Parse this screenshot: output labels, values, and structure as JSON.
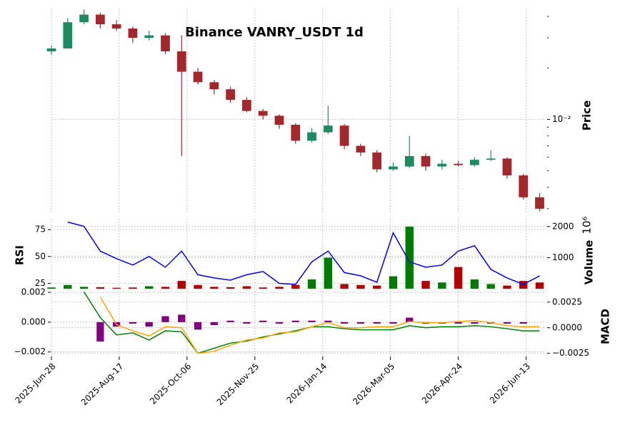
{
  "chart_data": {
    "type": "candlestick",
    "title": "Binance VANRY_USDT 1d",
    "x": [
      0,
      12,
      24,
      36,
      48,
      60,
      72,
      84,
      96,
      108,
      120,
      132,
      144,
      156,
      168,
      180,
      192,
      204,
      216,
      228,
      240,
      252,
      264,
      276,
      288,
      300,
      312,
      324,
      336,
      348,
      360
    ],
    "xlim": [
      0,
      365
    ],
    "xticks": [
      {
        "value": 0,
        "label": "2025-Jun-28"
      },
      {
        "value": 50,
        "label": "2025-Aug-17"
      },
      {
        "value": 100,
        "label": "2025-Oct-06"
      },
      {
        "value": 150,
        "label": "2025-Nov-25"
      },
      {
        "value": 200,
        "label": "2026-Jan-14"
      },
      {
        "value": 250,
        "label": "2026-Mar-05"
      },
      {
        "value": 300,
        "label": "2026-Apr-24"
      },
      {
        "value": 350,
        "label": "2026-Jun-13"
      }
    ],
    "grid": true,
    "price": {
      "ylabel": "Price",
      "log_scale": true,
      "ylim": [
        0.0028,
        0.0445
      ],
      "yticks": [
        {
          "value": 0.01,
          "label": "10⁻²"
        }
      ],
      "yminor_ticks": [
        0.003,
        0.004,
        0.005,
        0.006,
        0.007,
        0.008,
        0.009,
        0.02,
        0.03,
        0.04
      ],
      "up_color": "#1f8a5f",
      "down_color": "#a3282e",
      "open": [
        0.025,
        0.026,
        0.037,
        0.041,
        0.036,
        0.034,
        0.03,
        0.031,
        0.025,
        0.019,
        0.0165,
        0.015,
        0.013,
        0.0112,
        0.0105,
        0.0093,
        0.0075,
        0.0084,
        0.0092,
        0.007,
        0.0064,
        0.0051,
        0.0053,
        0.0061,
        0.0053,
        0.0055,
        0.0054,
        0.0058,
        0.0059,
        0.0047,
        0.0035
      ],
      "high": [
        0.027,
        0.039,
        0.044,
        0.042,
        0.038,
        0.035,
        0.033,
        0.032,
        0.031,
        0.02,
        0.017,
        0.0155,
        0.0135,
        0.0115,
        0.0107,
        0.0095,
        0.0089,
        0.012,
        0.0094,
        0.0072,
        0.0066,
        0.0056,
        0.008,
        0.0063,
        0.0058,
        0.0057,
        0.006,
        0.0066,
        0.006,
        0.0048,
        0.0037
      ],
      "low": [
        0.024,
        0.026,
        0.036,
        0.034,
        0.033,
        0.028,
        0.029,
        0.024,
        0.0061,
        0.016,
        0.014,
        0.0125,
        0.011,
        0.01,
        0.0088,
        0.0072,
        0.0073,
        0.0082,
        0.0067,
        0.0061,
        0.0049,
        0.005,
        0.0052,
        0.005,
        0.0051,
        0.0053,
        0.0053,
        0.0057,
        0.0045,
        0.0034,
        0.0029
      ],
      "close": [
        0.026,
        0.037,
        0.041,
        0.036,
        0.034,
        0.03,
        0.031,
        0.025,
        0.019,
        0.0165,
        0.015,
        0.013,
        0.0112,
        0.0105,
        0.0093,
        0.0075,
        0.0084,
        0.0092,
        0.007,
        0.0064,
        0.0051,
        0.0053,
        0.0061,
        0.0053,
        0.0055,
        0.0054,
        0.0058,
        0.0059,
        0.0047,
        0.0035,
        0.003
      ]
    },
    "rsi": {
      "type": "line",
      "ylabel": "RSI",
      "color": "#0000ee",
      "ylim": [
        20,
        85
      ],
      "yticks": [
        25,
        50,
        75
      ],
      "values": [
        null,
        82,
        78,
        55,
        48,
        42,
        50,
        40,
        55,
        33,
        30,
        28,
        33,
        36,
        25,
        24,
        45,
        55,
        35,
        32,
        26,
        72,
        45,
        40,
        42,
        55,
        60,
        38,
        30,
        24,
        32
      ]
    },
    "volume": {
      "type": "bar",
      "ylabel": "Volume",
      "offset_label": "10⁶",
      "y2lim": [
        0,
        2250
      ],
      "y2ticks": [
        1000,
        2000
      ],
      "values": [
        40,
        120,
        60,
        50,
        30,
        40,
        80,
        60,
        250,
        120,
        60,
        50,
        80,
        40,
        60,
        120,
        300,
        1000,
        150,
        120,
        100,
        400,
        2000,
        250,
        200,
        700,
        300,
        150,
        100,
        250,
        200
      ]
    },
    "macd": {
      "ylabel": "MACD",
      "ylim": [
        -0.0023,
        0.0021
      ],
      "yticks": [
        {
          "value": -0.002,
          "label": "−0.002"
        },
        {
          "value": 0,
          "label": "0.000"
        },
        {
          "value": 0.002,
          "label": "0.002"
        }
      ],
      "y2lim": [
        -0.0028,
        0.0036
      ],
      "y2ticks": [
        {
          "value": -0.0025,
          "label": "−0.0025"
        },
        {
          "value": 0,
          "label": "0.0000"
        },
        {
          "value": 0.0025,
          "label": "0.0025"
        }
      ],
      "series": [
        {
          "type": "bar",
          "color": "#800080",
          "values": [
            null,
            null,
            null,
            -0.0013,
            -0.0003,
            -0.0001,
            -0.0003,
            0.0004,
            0.0005,
            -0.0005,
            -0.0002,
            0.0001,
            -0.0001,
            0.0001,
            -0.0001,
            0.0001,
            0.0001,
            0.0001,
            -0.0001,
            -0.0001,
            -0.0001,
            -0.0001,
            0.0003,
            -0.0001,
            -0.0001,
            -0.0001,
            -0.0001,
            -0.0001,
            -0.0001,
            -0.0001,
            null
          ]
        },
        {
          "type": "line",
          "axis": "y2",
          "color": "#008000",
          "values": [
            null,
            null,
            0.0035,
            0.001,
            -0.0007,
            -0.0005,
            -0.0012,
            -0.0003,
            -0.0004,
            -0.0025,
            -0.002,
            -0.0015,
            -0.0013,
            -0.0009,
            -0.0006,
            -0.0003,
            0.0001,
            0.0001,
            -0.0001,
            -0.0002,
            -0.0002,
            -0.0002,
            0.0002,
            0,
            0.0001,
            0.0001,
            0.0002,
            0.0001,
            -0.0001,
            -0.0003,
            -0.0003
          ]
        },
        {
          "type": "line",
          "axis": "y2",
          "color": "#ffa500",
          "values": [
            null,
            null,
            null,
            0.003,
            0.0003,
            -0.0003,
            -0.0008,
            0.0001,
            0,
            -0.0025,
            -0.0023,
            -0.0017,
            -0.0012,
            -0.001,
            -0.0005,
            -0.0004,
            0.0001,
            0.0005,
            0,
            0,
            0.0001,
            0.0001,
            0.0006,
            0.0005,
            0.0005,
            0.0006,
            0.0007,
            0.0005,
            0.0002,
            0.0001,
            0.0001
          ]
        }
      ]
    }
  }
}
